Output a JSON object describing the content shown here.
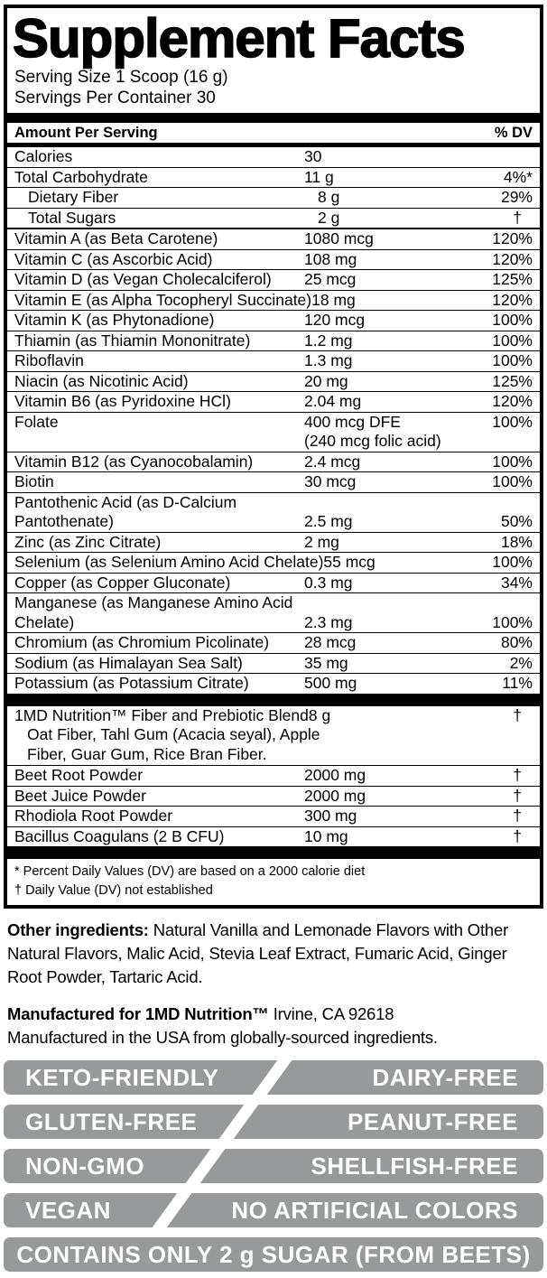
{
  "panel": {
    "title": "Supplement Facts",
    "serving_size": "Serving Size 1 Scoop (16 g)",
    "servings_per_container": "Servings Per Container 30",
    "header": {
      "amount_per_serving": "Amount Per Serving",
      "dv": "% DV"
    },
    "rows": [
      {
        "label": "Calories",
        "amount": "30",
        "dv": "",
        "after": "line"
      },
      {
        "label": "Total Carbohydrate",
        "amount": "11 g",
        "dv": "4%*",
        "after": "line"
      },
      {
        "label": "Dietary Fiber",
        "indent": true,
        "amount": "8 g",
        "dv": "29%",
        "after": "line"
      },
      {
        "label": "Total Sugars",
        "indent": true,
        "amount": "2 g",
        "dv": "†",
        "after": "thickline"
      },
      {
        "label": "Vitamin A (as Beta Carotene)",
        "amount": "1080 mcg",
        "dv": "120%",
        "after": "line"
      },
      {
        "label": "Vitamin C (as Ascorbic Acid)",
        "amount": "108 mg",
        "dv": "120%",
        "after": "line"
      },
      {
        "label": "Vitamin D (as Vegan Cholecalciferol)",
        "amount": "25 mcg",
        "dv": "125%",
        "after": "line"
      },
      {
        "label": "Vitamin E (as Alpha Tocopheryl Succinate)",
        "amount": "18 mg",
        "dv": "120%",
        "after": "line"
      },
      {
        "label": "Vitamin K (as Phytonadione)",
        "amount": "120 mcg",
        "dv": "100%",
        "after": "line"
      },
      {
        "label": "Thiamin (as Thiamin Mononitrate)",
        "amount": "1.2 mg",
        "dv": "100%",
        "after": "line"
      },
      {
        "label": "Riboflavin",
        "amount": "1.3 mg",
        "dv": "100%",
        "after": "line"
      },
      {
        "label": "Niacin (as Nicotinic Acid)",
        "amount": "20 mg",
        "dv": "125%",
        "after": "line"
      },
      {
        "label": "Vitamin B6 (as Pyridoxine HCl)",
        "amount": "2.04 mg",
        "dv": "120%",
        "after": "line"
      },
      {
        "label": "Folate",
        "amount": "400 mcg DFE",
        "amount2": "(240 mcg folic acid)",
        "dv": "100%",
        "after": "line"
      },
      {
        "label": "Vitamin B12 (as Cyanocobalamin)",
        "amount": "2.4 mcg",
        "dv": "100%",
        "after": "line"
      },
      {
        "label": "Biotin",
        "amount": "30 mcg",
        "dv": "100%",
        "after": "line"
      },
      {
        "label": "Pantothenic Acid (as D-Calcium",
        "label2": "Pantothenate)",
        "amount": "2.5 mg",
        "dv": "50%",
        "after": "line"
      },
      {
        "label": "Zinc (as Zinc Citrate)",
        "amount": "2 mg",
        "dv": "18%",
        "after": "line"
      },
      {
        "label": "Selenium (as Selenium Amino Acid Chelate)",
        "amount": "55 mcg",
        "dv": "100%",
        "after": "line"
      },
      {
        "label": "Copper (as Copper Gluconate)",
        "amount": "0.3 mg",
        "dv": "34%",
        "after": "line"
      },
      {
        "label": "Manganese (as Manganese Amino Acid",
        "label2": "Chelate)",
        "amount": "2.3 mg",
        "dv": "100%",
        "after": "line"
      },
      {
        "label": "Chromium (as Chromium Picolinate)",
        "amount": "28 mcg",
        "dv": "80%",
        "after": "line"
      },
      {
        "label": "Sodium (as Himalayan Sea Salt)",
        "amount": "35 mg",
        "dv": "2%",
        "after": "line"
      },
      {
        "label": "Potassium (as Potassium Citrate)",
        "amount": "500 mg",
        "dv": "11%",
        "after": "bar"
      },
      {
        "label": "1MD Nutrition™ Fiber and Prebiotic Blend",
        "amount": "8 g",
        "dv": "†",
        "sub": "Oat Fiber, Tahl Gum (Acacia seyal), Apple Fiber, Guar Gum, Rice Bran Fiber.",
        "after": "line"
      },
      {
        "label": "Beet Root Powder",
        "amount": "2000 mg",
        "dv": "†",
        "after": "line"
      },
      {
        "label": "Beet Juice Powder",
        "amount": "2000 mg",
        "dv": "†",
        "after": "line"
      },
      {
        "label": "Rhodiola Root Powder",
        "amount": "300 mg",
        "dv": "†",
        "after": "line"
      },
      {
        "label": "Bacillus Coagulans (2 B CFU)",
        "amount": "10 mg",
        "dv": "†",
        "after": "bar"
      }
    ],
    "footnotes": [
      "* Percent Daily Values (DV) are based on a 2000 calorie diet",
      "† Daily Value (DV) not established"
    ]
  },
  "other_ingredients": {
    "label": "Other ingredients:",
    "text": " Natural Vanilla and Lemonade Flavors with Other Natural Flavors, Malic Acid, Stevia Leaf Extract, Fumaric Acid, Ginger Root Powder, Tartaric Acid."
  },
  "manufactured": {
    "bold": "Manufactured for 1MD Nutrition™",
    "address": " Irvine, CA 92618",
    "line2": "Manufactured in the USA from globally-sourced ingredients."
  },
  "badges": {
    "pairs": [
      {
        "left": "KETO-FRIENDLY",
        "right": "DAIRY-FREE"
      },
      {
        "left": "GLUTEN-FREE",
        "right": "PEANUT-FREE"
      },
      {
        "left": "NON-GMO",
        "right": "SHELLFISH-FREE"
      },
      {
        "left": "VEGAN",
        "right": "NO ARTIFICIAL COLORS"
      }
    ],
    "full": "CONTAINS ONLY 2 g SUGAR (FROM BEETS)"
  },
  "colors": {
    "badge_gray": "#98999b",
    "text_black": "#000000",
    "badge_text": "#ffffff"
  }
}
